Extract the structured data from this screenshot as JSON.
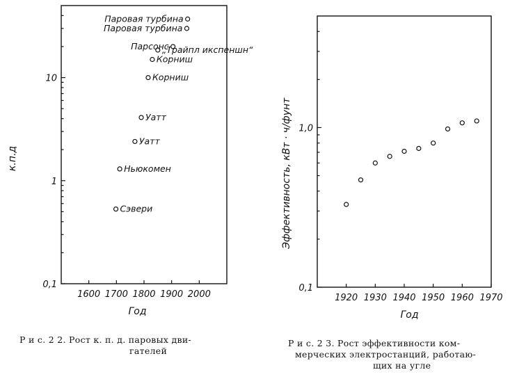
{
  "chart_data": [
    {
      "type": "scatter",
      "xlabel": "Год",
      "ylabel": "к.п.д",
      "y_scale": "log",
      "xlim": [
        1500,
        2100
      ],
      "ylim": [
        0.1,
        50
      ],
      "x_ticks": [
        1600,
        1700,
        1800,
        1900,
        2000
      ],
      "x_tick_labels": [
        "1600",
        "1700",
        "1800",
        "1900",
        "2000"
      ],
      "y_ticks": [
        0.1,
        1,
        10
      ],
      "y_tick_labels": [
        "0,1",
        "1",
        "10"
      ],
      "points": [
        {
          "x": 1698,
          "y": 0.53,
          "label": "Сэвери"
        },
        {
          "x": 1712,
          "y": 1.3,
          "label": "Ньюкомен"
        },
        {
          "x": 1767,
          "y": 2.4,
          "label": "Уатт"
        },
        {
          "x": 1790,
          "y": 4.1,
          "label": "Уатт"
        },
        {
          "x": 1815,
          "y": 10,
          "label": "Корниш"
        },
        {
          "x": 1830,
          "y": 15,
          "label": "Корниш"
        },
        {
          "x": 1850,
          "y": 18.5,
          "label": "„Трайпл икспеншн“"
        },
        {
          "x": 1905,
          "y": 20,
          "label": "Парсонс"
        },
        {
          "x": 1955,
          "y": 30,
          "label": "Паровая турбина"
        },
        {
          "x": 1958,
          "y": 37,
          "label": "Паровая турбина"
        }
      ],
      "caption": [
        "Р и с. 2 2.  Рост к. п. д. паровых дви-",
        "гателей"
      ]
    },
    {
      "type": "scatter",
      "xlabel": "Год",
      "ylabel": "Эффективность, кВт · ч/фунт",
      "y_scale": "log",
      "xlim": [
        1910,
        1970
      ],
      "ylim": [
        0.1,
        5
      ],
      "x_ticks": [
        1920,
        1930,
        1940,
        1950,
        1960,
        1970
      ],
      "x_tick_labels": [
        "1920",
        "1930",
        "1940",
        "1950",
        "1960",
        "1970"
      ],
      "y_ticks": [
        0.1,
        1
      ],
      "y_tick_labels": [
        "0,1",
        "1,0"
      ],
      "points": [
        {
          "x": 1920,
          "y": 0.33
        },
        {
          "x": 1925,
          "y": 0.47
        },
        {
          "x": 1930,
          "y": 0.6
        },
        {
          "x": 1935,
          "y": 0.66
        },
        {
          "x": 1940,
          "y": 0.71
        },
        {
          "x": 1945,
          "y": 0.74
        },
        {
          "x": 1950,
          "y": 0.8
        },
        {
          "x": 1955,
          "y": 0.98
        },
        {
          "x": 1960,
          "y": 1.07
        },
        {
          "x": 1965,
          "y": 1.1
        }
      ],
      "caption": [
        "Р и с. 2 3.  Рост эффективности ком-",
        "мерческих электростанций, работаю-",
        "щих на угле"
      ]
    }
  ]
}
